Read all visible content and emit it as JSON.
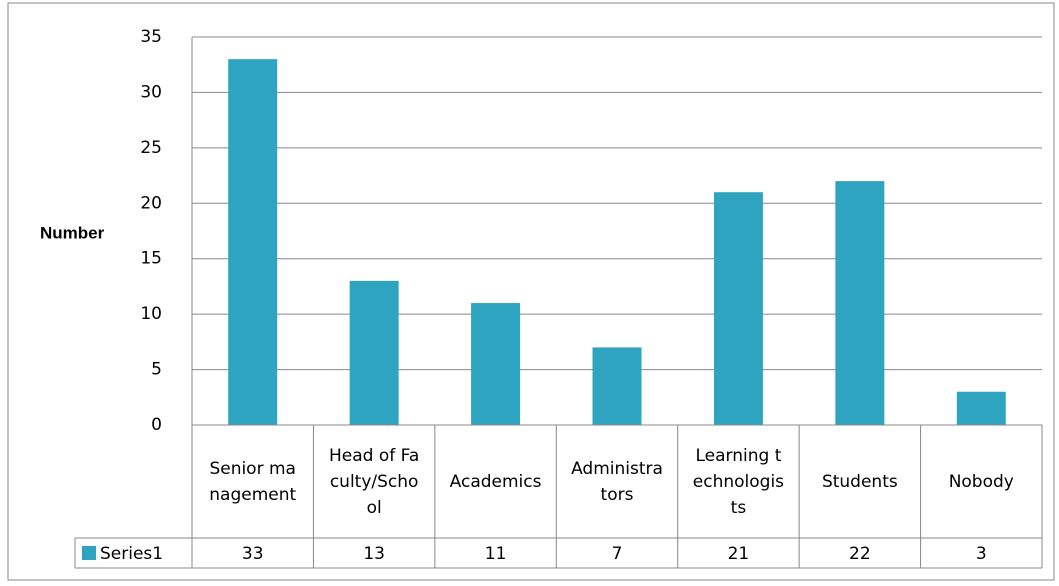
{
  "chart_data": {
    "type": "bar",
    "y_axis_label": "Number",
    "categories": [
      "Senior management",
      "Head of Faculty/School",
      "Academics",
      "Administrators",
      "Learning technologists",
      "Students",
      "Nobody"
    ],
    "series": [
      {
        "name": "Series1",
        "color": "#2ea4c0",
        "values": [
          33,
          13,
          11,
          7,
          21,
          22,
          3
        ]
      }
    ],
    "ylim": [
      0,
      35
    ],
    "yticks": [
      0,
      5,
      10,
      15,
      20,
      25,
      30,
      35
    ],
    "grid": true,
    "data_table": true
  }
}
